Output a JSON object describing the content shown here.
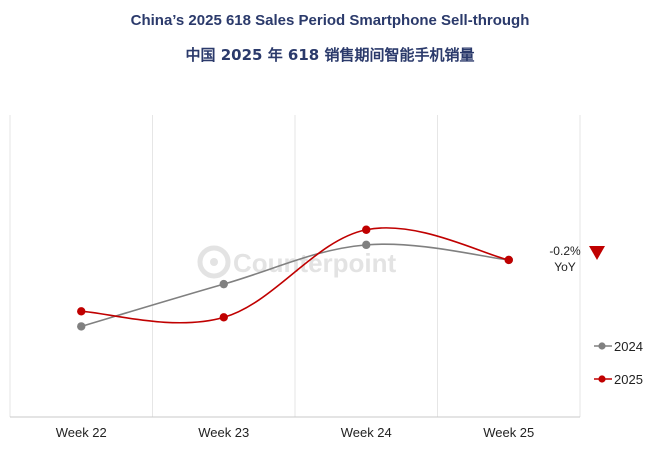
{
  "chart_data": {
    "type": "line",
    "title": "China’s 2025 618 Sales Period Smartphone Sell-through",
    "subtitle": "中国 2025 年 618 销售期间智能手机销量",
    "categories": [
      "Week 22",
      "Week 23",
      "Week 24",
      "Week 25"
    ],
    "series": [
      {
        "name": "2024",
        "color": "#808080",
        "values": [
          30,
          44,
          57,
          52
        ]
      },
      {
        "name": "2025",
        "color": "#c00000",
        "values": [
          35,
          33,
          62,
          52
        ]
      }
    ],
    "ylim": [
      0,
      100
    ],
    "annotation": {
      "value": "-0.2%",
      "label": "YoY",
      "marker": "down-triangle",
      "color": "#c00000"
    },
    "watermark": "Counterpoint",
    "grid": "vertical",
    "legend": "right"
  }
}
